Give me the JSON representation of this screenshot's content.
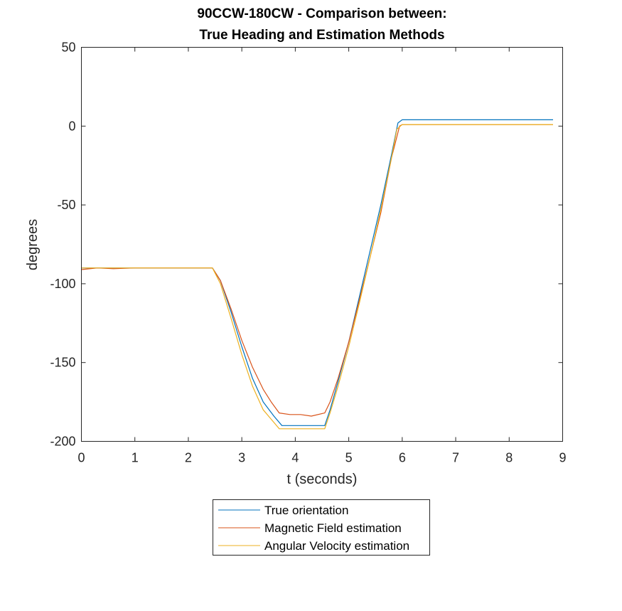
{
  "chart_data": {
    "type": "line",
    "title": [
      "90CCW-180CW - Comparison between:",
      "True Heading and Estimation Methods"
    ],
    "xlabel": "t (seconds)",
    "ylabel": "degrees",
    "xlim": [
      0,
      9
    ],
    "ylim": [
      -200,
      50
    ],
    "xticks": [
      "0",
      "1",
      "2",
      "3",
      "4",
      "5",
      "6",
      "7",
      "8",
      "9"
    ],
    "yticks": [
      "50",
      "0",
      "-50",
      "-100",
      "-150",
      "-200"
    ],
    "grid": false,
    "legend_position": "bottom-outside",
    "series": [
      {
        "name": "True orientation",
        "color": "#0072BD",
        "x": [
          0,
          0.5,
          1.0,
          1.5,
          2.0,
          2.45,
          2.6,
          2.8,
          3.0,
          3.2,
          3.4,
          3.6,
          3.75,
          4.0,
          4.3,
          4.55,
          4.65,
          4.8,
          5.0,
          5.2,
          5.4,
          5.6,
          5.8,
          5.92,
          6.0,
          7.0,
          8.0,
          8.82
        ],
        "y": [
          -90,
          -90,
          -90,
          -90,
          -90,
          -90,
          -98,
          -118,
          -140,
          -160,
          -175,
          -184,
          -190,
          -190,
          -190,
          -190,
          -180,
          -162,
          -137,
          -108,
          -79,
          -50,
          -18,
          2,
          4,
          4,
          4,
          4
        ]
      },
      {
        "name": "Magnetic Field estimation",
        "color": "#D95319",
        "x": [
          0,
          0.3,
          0.6,
          1.0,
          1.5,
          2.0,
          2.45,
          2.6,
          2.8,
          3.0,
          3.2,
          3.4,
          3.55,
          3.7,
          3.9,
          4.1,
          4.3,
          4.55,
          4.65,
          4.8,
          5.0,
          5.2,
          5.4,
          5.6,
          5.8,
          5.95,
          6.0,
          7.0,
          8.0,
          8.82
        ],
        "y": [
          -91,
          -90,
          -90.5,
          -90,
          -90,
          -90,
          -90,
          -98,
          -116,
          -136,
          -153,
          -167,
          -175,
          -182,
          -183,
          -183,
          -184,
          -182,
          -175,
          -160,
          -137,
          -110,
          -83,
          -55,
          -20,
          0,
          1,
          1,
          1,
          1
        ]
      },
      {
        "name": "Angular Velocity estimation",
        "color": "#EDB120",
        "x": [
          0,
          0.5,
          1.0,
          1.5,
          2.0,
          2.45,
          2.6,
          2.8,
          3.0,
          3.2,
          3.4,
          3.6,
          3.7,
          4.0,
          4.3,
          4.55,
          4.65,
          4.8,
          5.0,
          5.2,
          5.4,
          5.6,
          5.8,
          5.9,
          6.0,
          7.0,
          8.0,
          8.82
        ],
        "y": [
          -90,
          -90,
          -90,
          -90,
          -90,
          -90,
          -100,
          -122,
          -145,
          -165,
          -180,
          -188,
          -192,
          -192,
          -192,
          -192,
          -182,
          -165,
          -140,
          -112,
          -83,
          -53,
          -20,
          -2,
          1,
          1,
          1,
          1
        ]
      }
    ]
  }
}
